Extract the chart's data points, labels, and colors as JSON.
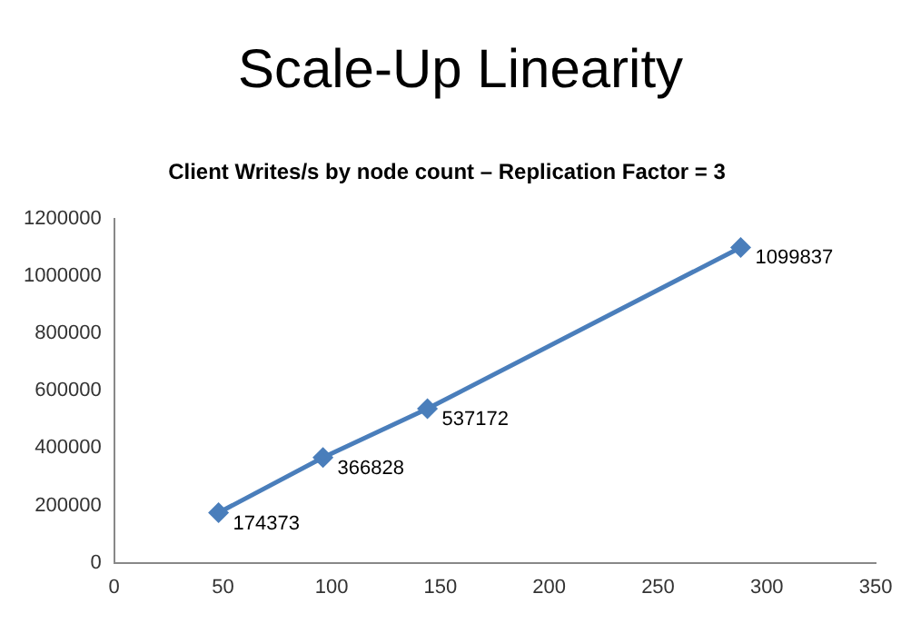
{
  "chart_data": {
    "type": "line",
    "title": "Scale-Up Linearity",
    "subtitle": "Client Writes/s by node count – Replication Factor = 3",
    "x": [
      48,
      96,
      144,
      288
    ],
    "series": [
      {
        "color": "#4a7ebb",
        "values": [
          174373,
          366828,
          537172,
          1099837
        ]
      }
    ],
    "xlim": [
      0,
      350
    ],
    "xticks": [
      0,
      50,
      100,
      150,
      200,
      250,
      300,
      350
    ],
    "ylim": [
      0,
      1200000
    ],
    "yticks": [
      0,
      200000,
      400000,
      600000,
      800000,
      1000000,
      1200000
    ],
    "grid": false,
    "legend": false,
    "marker": "diamond",
    "line_style": "solid",
    "data_labels": true
  }
}
